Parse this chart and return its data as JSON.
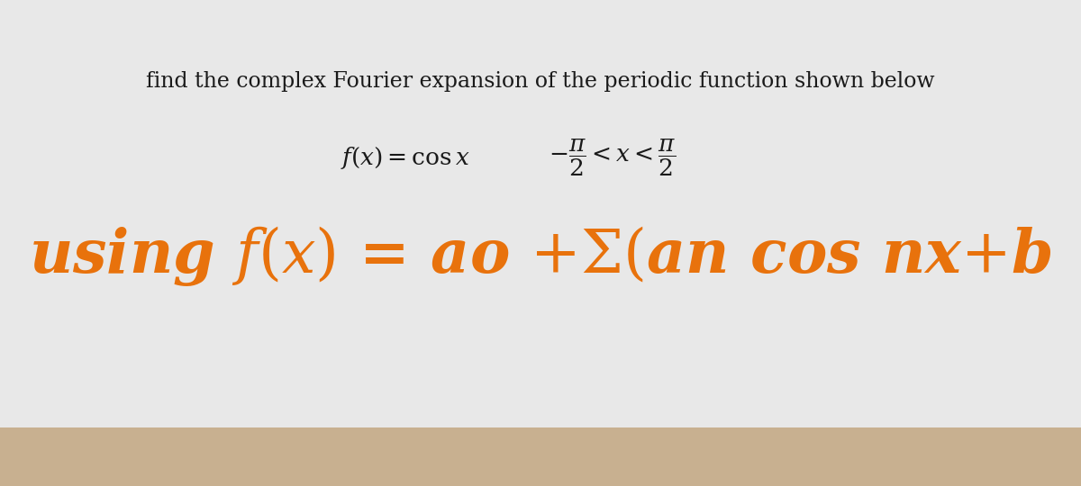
{
  "bg_top_color": "#d8d0c8",
  "paper_color": "#e8e8e8",
  "carpet_color": "#c8b090",
  "header_text": "find the complex Fourier expansion of the periodic function shown below",
  "header_color": "#1a1a1a",
  "header_fontsize": 17,
  "line1_color": "#1a1a1a",
  "line1_fontsize": 19,
  "line2_color": "#E8720C",
  "line2_fontsize": 48,
  "orange": "#E8720C"
}
